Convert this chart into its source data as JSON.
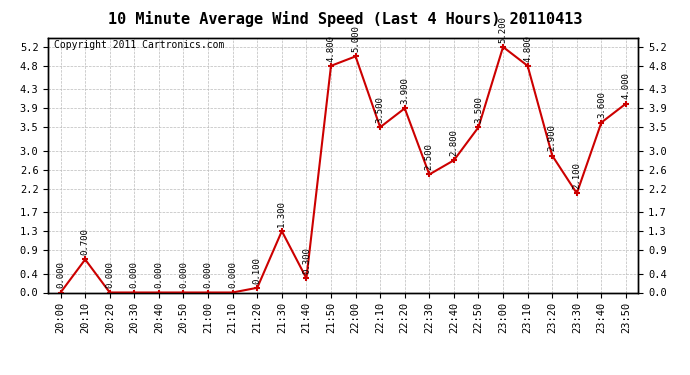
{
  "title": "10 Minute Average Wind Speed (Last 4 Hours) 20110413",
  "copyright": "Copyright 2011 Cartronics.com",
  "x_labels": [
    "20:00",
    "20:10",
    "20:20",
    "20:30",
    "20:40",
    "20:50",
    "21:00",
    "21:10",
    "21:20",
    "21:30",
    "21:40",
    "21:50",
    "22:00",
    "22:10",
    "22:20",
    "22:30",
    "22:40",
    "22:50",
    "23:00",
    "23:10",
    "23:20",
    "23:30",
    "23:40",
    "23:50"
  ],
  "y_values": [
    0.0,
    0.7,
    0.0,
    0.0,
    0.0,
    0.0,
    0.0,
    0.0,
    0.1,
    1.3,
    0.3,
    4.8,
    5.0,
    3.5,
    3.9,
    2.5,
    2.8,
    3.5,
    5.2,
    4.8,
    2.9,
    2.1,
    3.6,
    4.0
  ],
  "line_color": "#CC0000",
  "marker_color": "#CC0000",
  "bg_color": "#FFFFFF",
  "plot_bg_color": "#FFFFFF",
  "grid_color": "#BBBBBB",
  "yticks": [
    0.0,
    0.4,
    0.9,
    1.3,
    1.7,
    2.2,
    2.6,
    3.0,
    3.5,
    3.9,
    4.3,
    4.8,
    5.2
  ],
  "ylim": [
    0.0,
    5.4
  ],
  "title_fontsize": 11,
  "copyright_fontsize": 7,
  "annotation_fontsize": 6.5,
  "tick_fontsize": 7.5
}
